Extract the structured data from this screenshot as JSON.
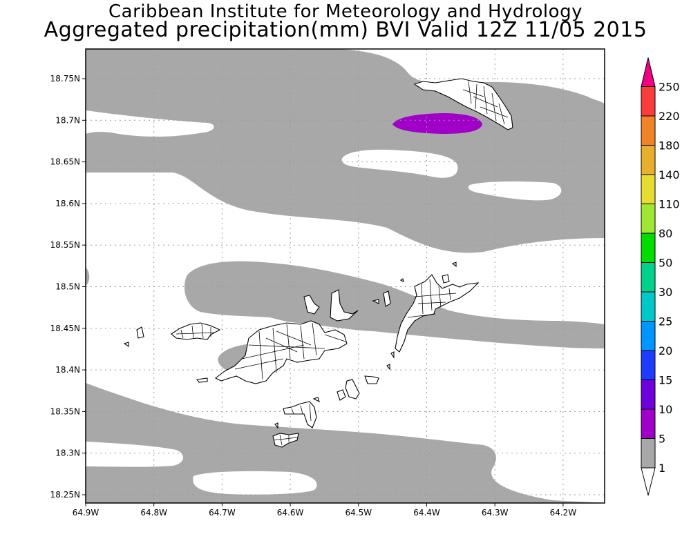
{
  "header": {
    "institute": "Caribbean Institute for Meteorology and Hydrology",
    "product": "Aggregated precipitation(mm) BVI Valid 12Z 11/05 2015"
  },
  "axes": {
    "lon_labels": [
      "64.9W",
      "64.8W",
      "64.7W",
      "64.6W",
      "64.5W",
      "64.4W",
      "64.3W",
      "64.2W"
    ],
    "lat_labels": [
      "18.75N",
      "18.7N",
      "18.65N",
      "18.6N",
      "18.55N",
      "18.5N",
      "18.45N",
      "18.4N",
      "18.35N",
      "18.3N",
      "18.25N"
    ]
  },
  "colorbar": {
    "levels": [
      "1",
      "5",
      "10",
      "15",
      "20",
      "25",
      "30",
      "50",
      "80",
      "110",
      "140",
      "180",
      "220",
      "250"
    ],
    "colors": [
      "#ffffff",
      "#a8a8a8",
      "#a000c8",
      "#6e00dc",
      "#1e3cff",
      "#0096ff",
      "#00c8c8",
      "#00d28c",
      "#00dc00",
      "#a0e632",
      "#e6dc32",
      "#e6af2d",
      "#f08228",
      "#fa3c3c",
      "#f00082"
    ]
  },
  "map_colors": {
    "precip_1_5": "#a8a8a8",
    "precip_5_10": "#a000c8",
    "land_outline": "#000000",
    "grid": "#9a9a9a"
  }
}
